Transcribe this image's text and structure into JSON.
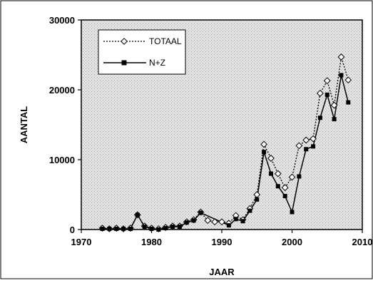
{
  "chart_data": {
    "type": "line",
    "xlabel": "JAAR",
    "ylabel": "AANTAL",
    "xlim": [
      1970,
      2010
    ],
    "ylim": [
      0,
      30000
    ],
    "xticks": [
      "1970",
      "1980",
      "1990",
      "2000",
      "2010"
    ],
    "yticks": [
      "0",
      "10000",
      "20000",
      "30000"
    ],
    "grid": false,
    "legend_position": "top-left",
    "series": [
      {
        "name": "TOTAAL",
        "style": "dotted",
        "marker": "open-diamond",
        "color": "#000000",
        "points": [
          [
            1973,
            200
          ],
          [
            1974,
            100
          ],
          [
            1975,
            200
          ],
          [
            1976,
            100
          ],
          [
            1977,
            200
          ],
          [
            1978,
            2100
          ],
          [
            1979,
            500
          ],
          [
            1980,
            200
          ],
          [
            1981,
            100
          ],
          [
            1982,
            300
          ],
          [
            1983,
            500
          ],
          [
            1984,
            500
          ],
          [
            1985,
            1100
          ],
          [
            1986,
            1400
          ],
          [
            1987,
            2500
          ],
          [
            1988,
            1300
          ],
          [
            1989,
            1100
          ],
          [
            1990,
            1100
          ],
          [
            1991,
            900
          ],
          [
            1992,
            2000
          ],
          [
            1993,
            1400
          ],
          [
            1994,
            3000
          ],
          [
            1995,
            5000
          ],
          [
            1996,
            12200
          ],
          [
            1997,
            10200
          ],
          [
            1998,
            8000
          ],
          [
            1999,
            6000
          ],
          [
            2000,
            7500
          ],
          [
            2001,
            12000
          ],
          [
            2002,
            12800
          ],
          [
            2003,
            13000
          ],
          [
            2004,
            19500
          ],
          [
            2005,
            21300
          ],
          [
            2006,
            17800
          ],
          [
            2007,
            24700
          ],
          [
            2008,
            21400
          ]
        ]
      },
      {
        "name": "N+Z",
        "style": "solid",
        "marker": "filled-square",
        "color": "#000000",
        "points": [
          [
            1973,
            100
          ],
          [
            1974,
            100
          ],
          [
            1975,
            100
          ],
          [
            1976,
            100
          ],
          [
            1977,
            100
          ],
          [
            1978,
            2100
          ],
          [
            1979,
            400
          ],
          [
            1980,
            100
          ],
          [
            1981,
            0
          ],
          [
            1982,
            200
          ],
          [
            1983,
            400
          ],
          [
            1984,
            400
          ],
          [
            1985,
            1000
          ],
          [
            1986,
            1300
          ],
          [
            1987,
            2400
          ],
          [
            1991,
            600
          ],
          [
            1992,
            1500
          ],
          [
            1993,
            1200
          ],
          [
            1994,
            2700
          ],
          [
            1995,
            4300
          ],
          [
            1996,
            11100
          ],
          [
            1997,
            8000
          ],
          [
            1998,
            6200
          ],
          [
            1999,
            4800
          ],
          [
            2000,
            2500
          ],
          [
            2001,
            7600
          ],
          [
            2002,
            11500
          ],
          [
            2003,
            11900
          ],
          [
            2004,
            16000
          ],
          [
            2005,
            19300
          ],
          [
            2006,
            15800
          ],
          [
            2007,
            22100
          ],
          [
            2008,
            18200
          ]
        ]
      }
    ]
  }
}
